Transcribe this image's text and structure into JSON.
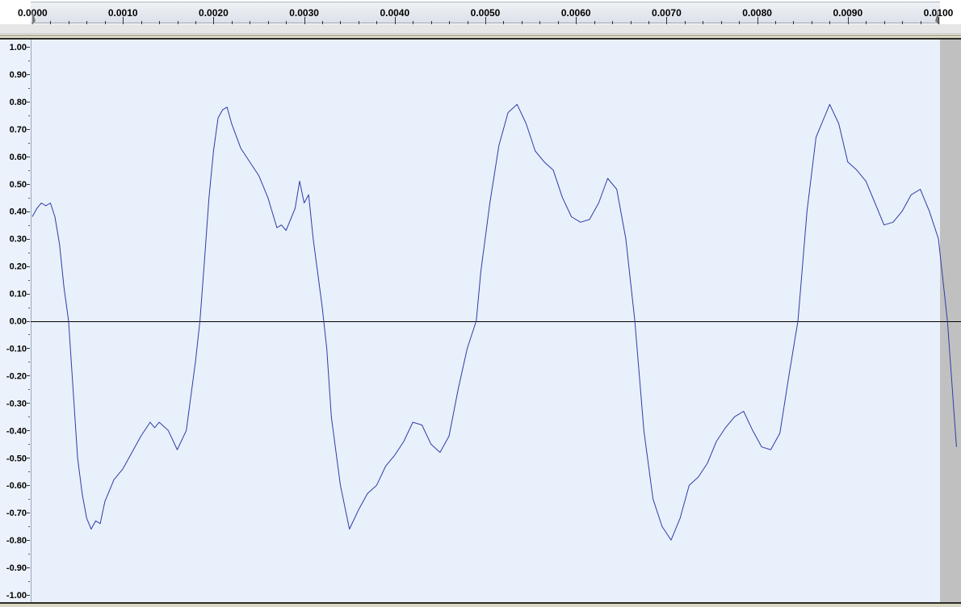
{
  "ruler": {
    "ticks": [
      "0.0000",
      "0.0010",
      "0.0020",
      "0.0030",
      "0.0040",
      "0.0050",
      "0.0060",
      "0.0070",
      "0.0080",
      "0.0090",
      "0.0100"
    ],
    "tick_values": [
      0.0,
      0.001,
      0.002,
      0.003,
      0.004,
      0.005,
      0.006,
      0.007,
      0.008,
      0.009,
      0.01
    ],
    "range": [
      0.0,
      0.01
    ]
  },
  "vertical_ruler": {
    "labels": [
      "1.00",
      "0.90-",
      "0.80-",
      "0.70-",
      "0.60-",
      "0.50-",
      "0.40-",
      "0.30-",
      "0.20-",
      "0.10-",
      "0.00-",
      "-0.10-",
      "-0.20-",
      "-0.30-",
      "-0.40-",
      "-0.50-",
      "-0.60-",
      "-0.70-",
      "-0.80-",
      "-0.90-",
      "-1.00"
    ],
    "values": [
      1.0,
      0.9,
      0.8,
      0.7,
      0.6,
      0.5,
      0.4,
      0.3,
      0.2,
      0.1,
      0.0,
      -0.1,
      -0.2,
      -0.3,
      -0.4,
      -0.5,
      -0.6,
      -0.7,
      -0.8,
      -0.9,
      -1.0
    ]
  },
  "waveform": {
    "color": "#2f3ca8",
    "background": "#e8f0fb",
    "zero_line_color": "#000000",
    "end_region_color": "#c0c0c0",
    "samples": [
      [
        0.0,
        0.38
      ],
      [
        5e-05,
        0.41
      ],
      [
        0.0001,
        0.43
      ],
      [
        0.00015,
        0.42
      ],
      [
        0.0002,
        0.43
      ],
      [
        0.00025,
        0.38
      ],
      [
        0.0003,
        0.28
      ],
      [
        0.00035,
        0.12
      ],
      [
        0.0004,
        0.0
      ],
      [
        0.00045,
        -0.25
      ],
      [
        0.0005,
        -0.5
      ],
      [
        0.00055,
        -0.63
      ],
      [
        0.0006,
        -0.72
      ],
      [
        0.00065,
        -0.76
      ],
      [
        0.0007,
        -0.73
      ],
      [
        0.00075,
        -0.74
      ],
      [
        0.0008,
        -0.66
      ],
      [
        0.0009,
        -0.58
      ],
      [
        0.001,
        -0.54
      ],
      [
        0.0011,
        -0.48
      ],
      [
        0.0012,
        -0.42
      ],
      [
        0.0013,
        -0.37
      ],
      [
        0.00135,
        -0.39
      ],
      [
        0.0014,
        -0.37
      ],
      [
        0.0015,
        -0.4
      ],
      [
        0.0016,
        -0.47
      ],
      [
        0.0017,
        -0.4
      ],
      [
        0.0018,
        -0.15
      ],
      [
        0.00185,
        0.0
      ],
      [
        0.0019,
        0.22
      ],
      [
        0.00195,
        0.45
      ],
      [
        0.002,
        0.62
      ],
      [
        0.00205,
        0.74
      ],
      [
        0.0021,
        0.77
      ],
      [
        0.00215,
        0.78
      ],
      [
        0.0022,
        0.72
      ],
      [
        0.0023,
        0.63
      ],
      [
        0.0024,
        0.58
      ],
      [
        0.0025,
        0.53
      ],
      [
        0.0026,
        0.45
      ],
      [
        0.0027,
        0.34
      ],
      [
        0.00275,
        0.35
      ],
      [
        0.0028,
        0.33
      ],
      [
        0.0029,
        0.41
      ],
      [
        0.00295,
        0.51
      ],
      [
        0.003,
        0.43
      ],
      [
        0.00305,
        0.46
      ],
      [
        0.0031,
        0.3
      ],
      [
        0.0032,
        0.05
      ],
      [
        0.00325,
        -0.1
      ],
      [
        0.0033,
        -0.35
      ],
      [
        0.0034,
        -0.6
      ],
      [
        0.0035,
        -0.76
      ],
      [
        0.0036,
        -0.69
      ],
      [
        0.0037,
        -0.63
      ],
      [
        0.0038,
        -0.6
      ],
      [
        0.0039,
        -0.53
      ],
      [
        0.004,
        -0.49
      ],
      [
        0.0041,
        -0.44
      ],
      [
        0.0042,
        -0.37
      ],
      [
        0.0043,
        -0.38
      ],
      [
        0.0044,
        -0.45
      ],
      [
        0.0045,
        -0.48
      ],
      [
        0.0046,
        -0.42
      ],
      [
        0.0047,
        -0.25
      ],
      [
        0.0048,
        -0.1
      ],
      [
        0.0049,
        0.0
      ],
      [
        0.00495,
        0.18
      ],
      [
        0.00505,
        0.43
      ],
      [
        0.00515,
        0.64
      ],
      [
        0.00525,
        0.76
      ],
      [
        0.00535,
        0.79
      ],
      [
        0.00545,
        0.72
      ],
      [
        0.00555,
        0.62
      ],
      [
        0.00565,
        0.58
      ],
      [
        0.00575,
        0.55
      ],
      [
        0.00585,
        0.45
      ],
      [
        0.00595,
        0.38
      ],
      [
        0.00605,
        0.36
      ],
      [
        0.00615,
        0.37
      ],
      [
        0.00625,
        0.43
      ],
      [
        0.00635,
        0.52
      ],
      [
        0.00645,
        0.48
      ],
      [
        0.00655,
        0.3
      ],
      [
        0.00665,
        0.0
      ],
      [
        0.00675,
        -0.4
      ],
      [
        0.00685,
        -0.65
      ],
      [
        0.00695,
        -0.75
      ],
      [
        0.00705,
        -0.8
      ],
      [
        0.00715,
        -0.72
      ],
      [
        0.00725,
        -0.6
      ],
      [
        0.00735,
        -0.57
      ],
      [
        0.00745,
        -0.52
      ],
      [
        0.00755,
        -0.44
      ],
      [
        0.00765,
        -0.39
      ],
      [
        0.00775,
        -0.35
      ],
      [
        0.00785,
        -0.33
      ],
      [
        0.00795,
        -0.4
      ],
      [
        0.00805,
        -0.46
      ],
      [
        0.00815,
        -0.47
      ],
      [
        0.00825,
        -0.41
      ],
      [
        0.00835,
        -0.2
      ],
      [
        0.00845,
        0.0
      ],
      [
        0.00855,
        0.4
      ],
      [
        0.00865,
        0.67
      ],
      [
        0.0088,
        0.79
      ],
      [
        0.0089,
        0.72
      ],
      [
        0.009,
        0.58
      ],
      [
        0.0091,
        0.55
      ],
      [
        0.0092,
        0.51
      ],
      [
        0.0093,
        0.43
      ],
      [
        0.0094,
        0.35
      ],
      [
        0.0095,
        0.36
      ],
      [
        0.0096,
        0.4
      ],
      [
        0.0097,
        0.46
      ],
      [
        0.0098,
        0.48
      ],
      [
        0.0099,
        0.4
      ],
      [
        0.01,
        0.3
      ],
      [
        0.0101,
        0.0
      ],
      [
        0.0102,
        -0.46
      ]
    ]
  }
}
